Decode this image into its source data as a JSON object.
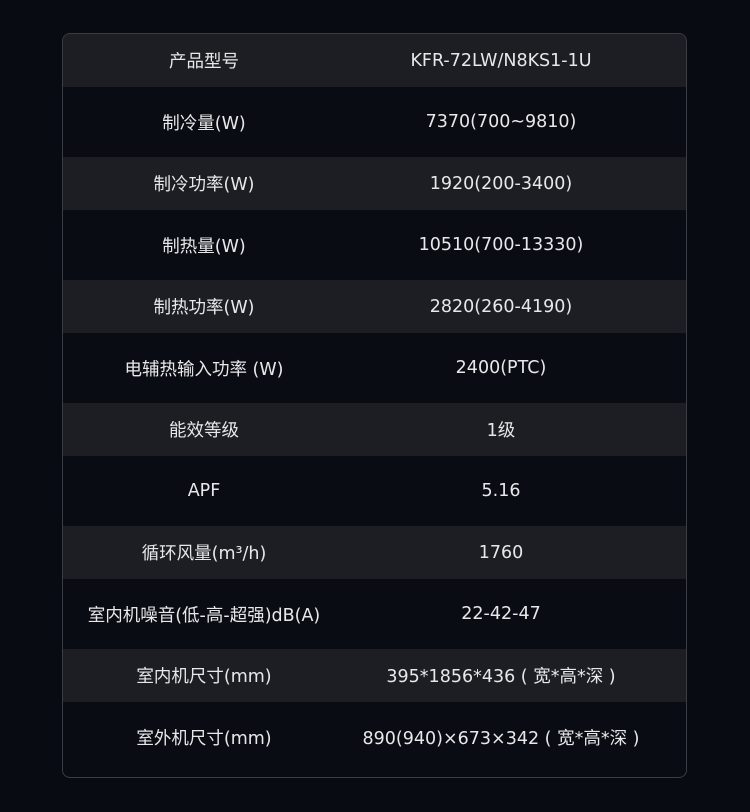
{
  "specs": [
    {
      "label": "产品型号",
      "value": "KFR-72LW/N8KS1-1U"
    },
    {
      "label": "制冷量(W)",
      "value": "7370(700~9810)"
    },
    {
      "label": "制冷功率(W)",
      "value": "1920(200-3400)"
    },
    {
      "label": "制热量(W)",
      "value": "10510(700-13330)"
    },
    {
      "label": "制热功率(W)",
      "value": "2820(260-4190)"
    },
    {
      "label": "电辅热输入功率 (W)",
      "value": "2400(PTC)"
    },
    {
      "label": "能效等级",
      "value": "1级"
    },
    {
      "label": "APF",
      "value": "5.16"
    },
    {
      "label": "循环风量(m³/h)",
      "value": "1760"
    },
    {
      "label": "室内机噪音(低-高-超强)dB(A)",
      "value": "22-42-47"
    },
    {
      "label": "室内机尺寸(mm)",
      "value": "395*1856*436 ( 宽*高*深 )"
    },
    {
      "label": "室外机尺寸(mm)",
      "value": "890(940)×673×342 ( 宽*高*深 )"
    }
  ]
}
